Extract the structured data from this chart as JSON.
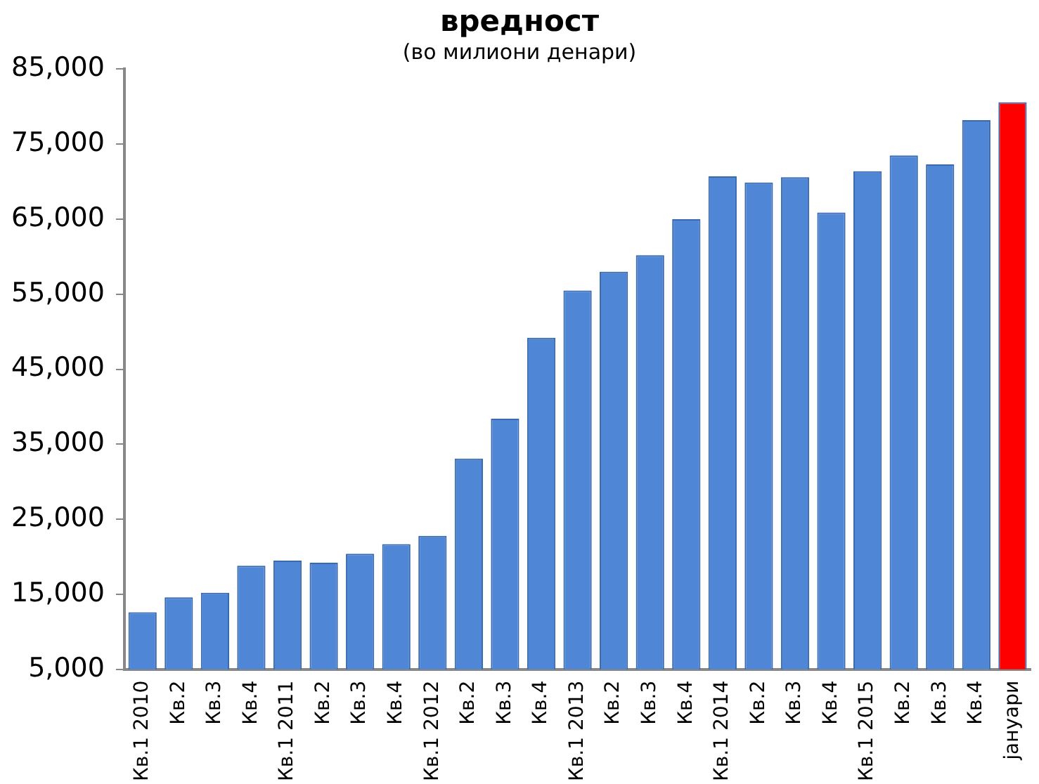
{
  "chart_data": {
    "type": "bar",
    "title": "вредност",
    "subtitle": "(во милиони денари)",
    "categories": [
      "Кв.1 2010",
      "Кв.2",
      "Кв.3",
      "Кв.4",
      "Кв.1 2011",
      "Кв.2",
      "Кв.3",
      "Кв.4",
      "Кв.1 2012",
      "Кв.2",
      "Кв.3",
      "Кв.4",
      "Кв.1 2013",
      "Кв.2",
      "Кв.3",
      "Кв.4",
      "Кв.1 2014",
      "Кв.2",
      "Кв.3",
      "Кв.4",
      "Кв.1 2015",
      "Кв.2",
      "Кв.3",
      "Кв.4",
      "јануари"
    ],
    "values": [
      12600,
      14600,
      15200,
      18800,
      19500,
      19200,
      20400,
      21700,
      22800,
      33100,
      38400,
      49200,
      55500,
      58000,
      60200,
      65000,
      70700,
      69900,
      70600,
      65900,
      71400,
      73500,
      72300,
      78200,
      80600
    ],
    "colors": [
      "#4f86d6",
      "#4f86d6",
      "#4f86d6",
      "#4f86d6",
      "#4f86d6",
      "#4f86d6",
      "#4f86d6",
      "#4f86d6",
      "#4f86d6",
      "#4f86d6",
      "#4f86d6",
      "#4f86d6",
      "#4f86d6",
      "#4f86d6",
      "#4f86d6",
      "#4f86d6",
      "#4f86d6",
      "#4f86d6",
      "#4f86d6",
      "#4f86d6",
      "#4f86d6",
      "#4f86d6",
      "#4f86d6",
      "#4f86d6",
      "#ff0000"
    ],
    "ylim": [
      5000,
      85000
    ],
    "yticks": [
      {
        "value": 5000,
        "label": "5,000"
      },
      {
        "value": 15000,
        "label": "15,000"
      },
      {
        "value": 25000,
        "label": "25,000"
      },
      {
        "value": 35000,
        "label": "35,000"
      },
      {
        "value": 45000,
        "label": "45,000"
      },
      {
        "value": 55000,
        "label": "55,000"
      },
      {
        "value": 65000,
        "label": "65,000"
      },
      {
        "value": 75000,
        "label": "75,000"
      },
      {
        "value": 85000,
        "label": "85,000"
      }
    ],
    "grid": false,
    "legend": false
  }
}
